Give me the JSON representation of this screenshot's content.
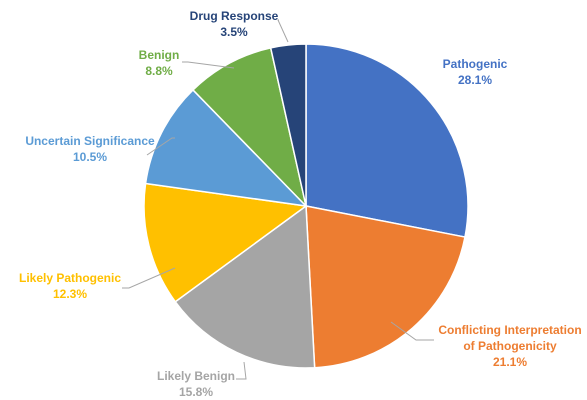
{
  "chart_data": {
    "type": "pie",
    "title": "",
    "slices": [
      {
        "label_lines": [
          "Pathogenic"
        ],
        "pct_label": "28.1%",
        "value": 28.1,
        "color": "#4472c4"
      },
      {
        "label_lines": [
          "Conflicting Interpretation",
          "of Pathogenicity"
        ],
        "pct_label": "21.1%",
        "value": 21.1,
        "color": "#ed7d31"
      },
      {
        "label_lines": [
          "Likely Benign"
        ],
        "pct_label": "15.8%",
        "value": 15.8,
        "color": "#a5a5a5"
      },
      {
        "label_lines": [
          "Likely Pathogenic"
        ],
        "pct_label": "12.3%",
        "value": 12.3,
        "color": "#ffc000"
      },
      {
        "label_lines": [
          "Uncertain Significance"
        ],
        "pct_label": "10.5%",
        "value": 10.5,
        "color": "#5b9bd5"
      },
      {
        "label_lines": [
          "Benign"
        ],
        "pct_label": "8.8%",
        "value": 8.8,
        "color": "#70ad47"
      },
      {
        "label_lines": [
          "Drug Response"
        ],
        "pct_label": "3.5%",
        "value": 3.5,
        "color": "#264478"
      }
    ],
    "start_angle": "12 o'clock",
    "direction": "clockwise",
    "legend": "none"
  }
}
